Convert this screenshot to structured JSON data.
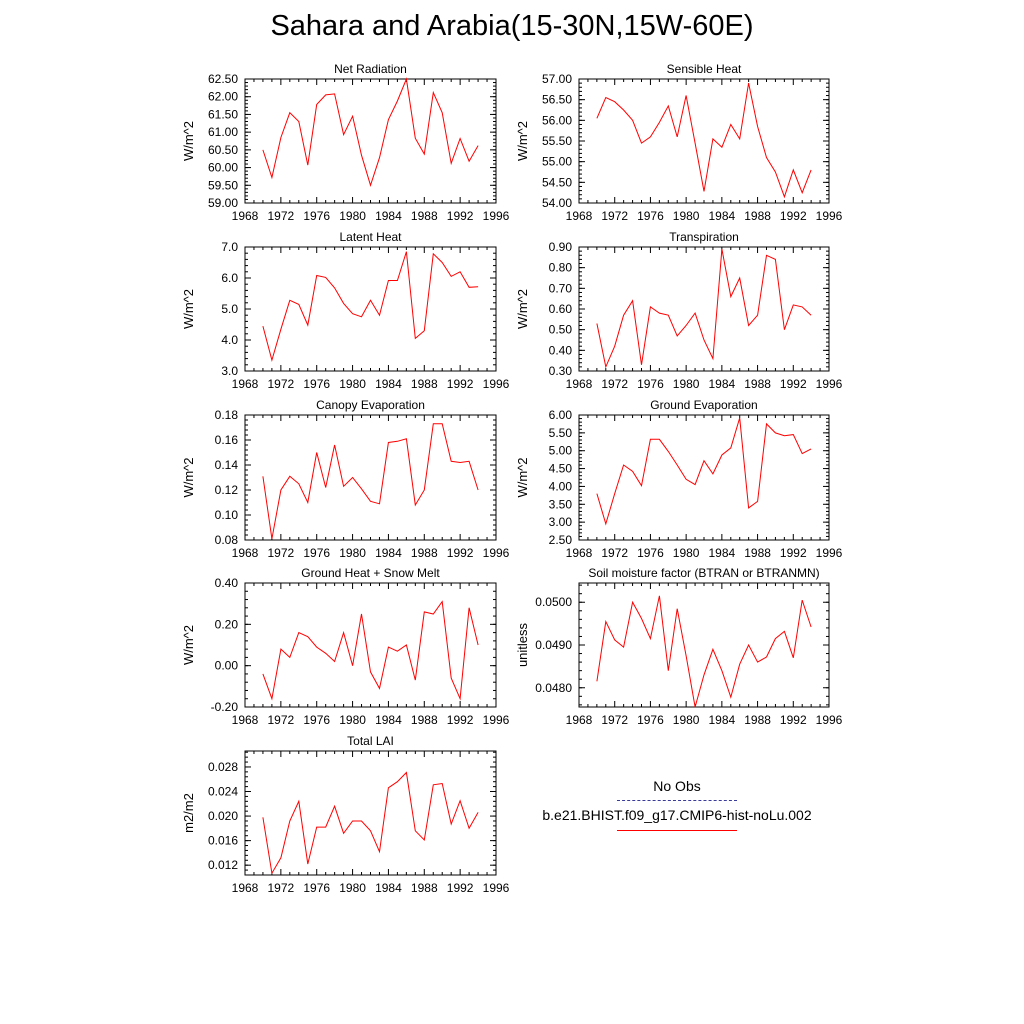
{
  "title": "Sahara and Arabia(15-30N,15W-60E)",
  "legend": {
    "items": [
      {
        "label": "No Obs",
        "color": "#3a3a9a",
        "style": "dashed"
      },
      {
        "label": "b.e21.BHIST.f09_g17.CMIP6-hist-noLu.002",
        "color": "#ff0000",
        "style": "solid"
      }
    ]
  },
  "chart_data": [
    {
      "type": "line",
      "title": "Net Radiation",
      "ylabel": "W/m^2",
      "xlim": [
        1968,
        1996
      ],
      "xticks": [
        "1968",
        "1972",
        "1976",
        "1980",
        "1984",
        "1988",
        "1992",
        "1996"
      ],
      "ylim": [
        59.0,
        62.5
      ],
      "yticks": [
        "59.00",
        "59.50",
        "60.00",
        "60.50",
        "61.00",
        "61.50",
        "62.00",
        "62.50"
      ],
      "series": [
        {
          "color": "#ff0000",
          "x": [
            1970,
            1971,
            1972,
            1973,
            1974,
            1975,
            1976,
            1977,
            1978,
            1979,
            1980,
            1981,
            1982,
            1983,
            1984,
            1985,
            1986,
            1987,
            1988,
            1989,
            1990,
            1991,
            1992,
            1993,
            1994
          ],
          "values": [
            60.5,
            59.72,
            60.85,
            61.55,
            61.3,
            60.07,
            61.78,
            62.05,
            62.08,
            60.93,
            61.45,
            60.35,
            59.5,
            60.28,
            61.35,
            61.88,
            62.5,
            60.83,
            60.38,
            62.12,
            61.55,
            60.12,
            60.82,
            60.18,
            60.62
          ]
        }
      ]
    },
    {
      "type": "line",
      "title": "Sensible Heat",
      "ylabel": "W/m^2",
      "xlim": [
        1968,
        1996
      ],
      "xticks": [
        "1968",
        "1972",
        "1976",
        "1980",
        "1984",
        "1988",
        "1992",
        "1996"
      ],
      "ylim": [
        54.0,
        57.0
      ],
      "yticks": [
        "54.00",
        "54.50",
        "55.00",
        "55.50",
        "56.00",
        "56.50",
        "57.00"
      ],
      "series": [
        {
          "color": "#ff0000",
          "x": [
            1970,
            1971,
            1972,
            1973,
            1974,
            1975,
            1976,
            1977,
            1978,
            1979,
            1980,
            1981,
            1982,
            1983,
            1984,
            1985,
            1986,
            1987,
            1988,
            1989,
            1990,
            1991,
            1992,
            1993,
            1994
          ],
          "values": [
            56.05,
            56.55,
            56.45,
            56.25,
            56.0,
            55.45,
            55.6,
            55.95,
            56.35,
            55.6,
            56.6,
            55.45,
            54.28,
            55.55,
            55.35,
            55.9,
            55.55,
            56.9,
            55.85,
            55.1,
            54.75,
            54.15,
            54.8,
            54.25,
            54.8
          ]
        }
      ]
    },
    {
      "type": "line",
      "title": "Latent Heat",
      "ylabel": "W/m^2",
      "xlim": [
        1968,
        1996
      ],
      "xticks": [
        "1968",
        "1972",
        "1976",
        "1980",
        "1984",
        "1988",
        "1992",
        "1996"
      ],
      "ylim": [
        3.0,
        7.0
      ],
      "yticks": [
        "3.0",
        "4.0",
        "5.0",
        "6.0",
        "7.0"
      ],
      "series": [
        {
          "color": "#ff0000",
          "x": [
            1970,
            1971,
            1972,
            1973,
            1974,
            1975,
            1976,
            1977,
            1978,
            1979,
            1980,
            1981,
            1982,
            1983,
            1984,
            1985,
            1986,
            1987,
            1988,
            1989,
            1990,
            1991,
            1992,
            1993,
            1994
          ],
          "values": [
            4.45,
            3.35,
            4.35,
            5.28,
            5.15,
            4.48,
            6.08,
            6.02,
            5.68,
            5.18,
            4.85,
            4.75,
            5.28,
            4.8,
            5.92,
            5.92,
            6.85,
            4.05,
            4.3,
            6.78,
            6.5,
            6.05,
            6.2,
            5.7,
            5.72
          ]
        }
      ]
    },
    {
      "type": "line",
      "title": "Transpiration",
      "ylabel": "W/m^2",
      "xlim": [
        1968,
        1996
      ],
      "xticks": [
        "1968",
        "1972",
        "1976",
        "1980",
        "1984",
        "1988",
        "1992",
        "1996"
      ],
      "ylim": [
        0.3,
        0.9
      ],
      "yticks": [
        "0.30",
        "0.40",
        "0.50",
        "0.60",
        "0.70",
        "0.80",
        "0.90"
      ],
      "series": [
        {
          "color": "#ff0000",
          "x": [
            1970,
            1971,
            1972,
            1973,
            1974,
            1975,
            1976,
            1977,
            1978,
            1979,
            1980,
            1981,
            1982,
            1983,
            1984,
            1985,
            1986,
            1987,
            1988,
            1989,
            1990,
            1991,
            1992,
            1993,
            1994
          ],
          "values": [
            0.53,
            0.32,
            0.42,
            0.57,
            0.64,
            0.33,
            0.61,
            0.58,
            0.57,
            0.47,
            0.52,
            0.58,
            0.45,
            0.36,
            0.89,
            0.66,
            0.75,
            0.52,
            0.57,
            0.86,
            0.84,
            0.5,
            0.62,
            0.61,
            0.57
          ]
        }
      ]
    },
    {
      "type": "line",
      "title": "Canopy Evaporation",
      "ylabel": "W/m^2",
      "xlim": [
        1968,
        1996
      ],
      "xticks": [
        "1968",
        "1972",
        "1976",
        "1980",
        "1984",
        "1988",
        "1992",
        "1996"
      ],
      "ylim": [
        0.08,
        0.18
      ],
      "yticks": [
        "0.08",
        "0.10",
        "0.12",
        "0.14",
        "0.16",
        "0.18"
      ],
      "series": [
        {
          "color": "#ff0000",
          "x": [
            1970,
            1971,
            1972,
            1973,
            1974,
            1975,
            1976,
            1977,
            1978,
            1979,
            1980,
            1981,
            1982,
            1983,
            1984,
            1985,
            1986,
            1987,
            1988,
            1989,
            1990,
            1991,
            1992,
            1993,
            1994
          ],
          "values": [
            0.131,
            0.081,
            0.12,
            0.131,
            0.125,
            0.11,
            0.15,
            0.122,
            0.156,
            0.123,
            0.13,
            0.121,
            0.111,
            0.109,
            0.158,
            0.159,
            0.161,
            0.108,
            0.12,
            0.173,
            0.173,
            0.143,
            0.142,
            0.143,
            0.12
          ]
        }
      ]
    },
    {
      "type": "line",
      "title": "Ground Evaporation",
      "ylabel": "W/m^2",
      "xlim": [
        1968,
        1996
      ],
      "xticks": [
        "1968",
        "1972",
        "1976",
        "1980",
        "1984",
        "1988",
        "1992",
        "1996"
      ],
      "ylim": [
        2.5,
        6.0
      ],
      "yticks": [
        "2.50",
        "3.00",
        "3.50",
        "4.00",
        "4.50",
        "5.00",
        "5.50",
        "6.00"
      ],
      "series": [
        {
          "color": "#ff0000",
          "x": [
            1970,
            1971,
            1972,
            1973,
            1974,
            1975,
            1976,
            1977,
            1978,
            1979,
            1980,
            1981,
            1982,
            1983,
            1984,
            1985,
            1986,
            1987,
            1988,
            1989,
            1990,
            1991,
            1992,
            1993,
            1994
          ],
          "values": [
            3.8,
            2.95,
            3.8,
            4.6,
            4.42,
            4.02,
            5.32,
            5.32,
            4.98,
            4.6,
            4.2,
            4.05,
            4.72,
            4.35,
            4.88,
            5.08,
            5.92,
            3.4,
            3.58,
            5.75,
            5.5,
            5.42,
            5.45,
            4.92,
            5.05
          ]
        }
      ]
    },
    {
      "type": "line",
      "title": "Ground Heat + Snow Melt",
      "ylabel": "W/m^2",
      "xlim": [
        1968,
        1996
      ],
      "xticks": [
        "1968",
        "1972",
        "1976",
        "1980",
        "1984",
        "1988",
        "1992",
        "1996"
      ],
      "ylim": [
        -0.2,
        0.4
      ],
      "yticks": [
        "-0.20",
        "0.00",
        "0.20",
        "0.40"
      ],
      "series": [
        {
          "color": "#ff0000",
          "x": [
            1970,
            1971,
            1972,
            1973,
            1974,
            1975,
            1976,
            1977,
            1978,
            1979,
            1980,
            1981,
            1982,
            1983,
            1984,
            1985,
            1986,
            1987,
            1988,
            1989,
            1990,
            1991,
            1992,
            1993,
            1994
          ],
          "values": [
            -0.04,
            -0.16,
            0.08,
            0.04,
            0.16,
            0.14,
            0.09,
            0.06,
            0.02,
            0.16,
            0.0,
            0.25,
            -0.03,
            -0.11,
            0.09,
            0.07,
            0.1,
            -0.07,
            0.26,
            0.25,
            0.31,
            -0.06,
            -0.16,
            0.28,
            0.1
          ]
        }
      ]
    },
    {
      "type": "line",
      "title": "Soil moisture factor (BTRAN or BTRANMN)",
      "ylabel": "unitless",
      "xlim": [
        1968,
        1996
      ],
      "xticks": [
        "1968",
        "1972",
        "1976",
        "1980",
        "1984",
        "1988",
        "1992",
        "1996"
      ],
      "ylim": [
        0.04755,
        0.05045
      ],
      "yticks": [
        "0.0480",
        "0.0490",
        "0.0500"
      ],
      "ytick_values": [
        0.048,
        0.049,
        0.05
      ],
      "series": [
        {
          "color": "#ff0000",
          "x": [
            1970,
            1971,
            1972,
            1973,
            1974,
            1975,
            1976,
            1977,
            1978,
            1979,
            1980,
            1981,
            1982,
            1983,
            1984,
            1985,
            1986,
            1987,
            1988,
            1989,
            1990,
            1991,
            1992,
            1993,
            1994
          ],
          "values": [
            0.04815,
            0.04955,
            0.04912,
            0.04895,
            0.05,
            0.04962,
            0.04915,
            0.05015,
            0.0484,
            0.04985,
            0.04875,
            0.04755,
            0.0483,
            0.0489,
            0.0484,
            0.04778,
            0.04855,
            0.049,
            0.0486,
            0.04872,
            0.04915,
            0.04932,
            0.0487,
            0.05005,
            0.04942
          ]
        }
      ]
    },
    {
      "type": "line",
      "title": "Total LAI",
      "ylabel": "m2/m2",
      "xlim": [
        1968,
        1996
      ],
      "xticks": [
        "1968",
        "1972",
        "1976",
        "1980",
        "1984",
        "1988",
        "1992",
        "1996"
      ],
      "ylim": [
        0.0104,
        0.0306
      ],
      "yticks": [
        "0.012",
        "0.016",
        "0.020",
        "0.024",
        "0.028"
      ],
      "ytick_values": [
        0.012,
        0.016,
        0.02,
        0.024,
        0.028
      ],
      "series": [
        {
          "color": "#ff0000",
          "x": [
            1970,
            1971,
            1972,
            1973,
            1974,
            1975,
            1976,
            1977,
            1978,
            1979,
            1980,
            1981,
            1982,
            1983,
            1984,
            1985,
            1986,
            1987,
            1988,
            1989,
            1990,
            1991,
            1992,
            1993,
            1994
          ],
          "values": [
            0.0198,
            0.0107,
            0.0132,
            0.0192,
            0.0224,
            0.0122,
            0.0182,
            0.0182,
            0.0216,
            0.0172,
            0.0192,
            0.0192,
            0.0176,
            0.0142,
            0.0246,
            0.0256,
            0.0271,
            0.0176,
            0.0161,
            0.0251,
            0.0253,
            0.0187,
            0.0225,
            0.018,
            0.0206
          ]
        }
      ]
    }
  ]
}
